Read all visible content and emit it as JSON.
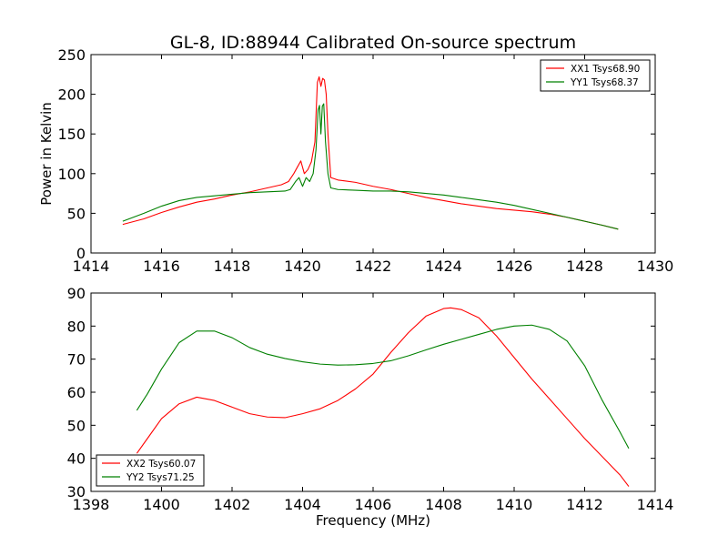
{
  "title": "GL-8, ID:88944 Calibrated On-source spectrum",
  "xlabel": "Frequency (MHz)",
  "chart_data": [
    {
      "type": "line",
      "ylabel": "Power in Kelvin",
      "xlim": [
        1414,
        1430
      ],
      "ylim": [
        0,
        250
      ],
      "xticks": [
        1414,
        1416,
        1418,
        1420,
        1422,
        1424,
        1426,
        1428,
        1430
      ],
      "yticks": [
        0,
        50,
        100,
        150,
        200,
        250
      ],
      "legend_position": "top-right",
      "series": [
        {
          "name": "XX1 Tsys68.90",
          "color": "#ff0000",
          "x": [
            1414.9,
            1415.5,
            1416,
            1416.5,
            1417,
            1417.5,
            1418,
            1418.5,
            1419,
            1419.4,
            1419.6,
            1419.75,
            1419.85,
            1419.95,
            1420.05,
            1420.15,
            1420.25,
            1420.35,
            1420.42,
            1420.47,
            1420.52,
            1420.57,
            1420.62,
            1420.67,
            1420.72,
            1420.8,
            1421,
            1421.5,
            1422,
            1422.5,
            1423,
            1423.5,
            1424,
            1424.5,
            1425,
            1425.5,
            1426,
            1426.5,
            1427,
            1427.5,
            1428,
            1428.5,
            1428.95
          ],
          "y": [
            36,
            43,
            51,
            58,
            64,
            68,
            73,
            77,
            82,
            86,
            90,
            100,
            108,
            116,
            100,
            105,
            115,
            140,
            215,
            222,
            210,
            220,
            218,
            200,
            150,
            95,
            92,
            89,
            84,
            80,
            75,
            70,
            66,
            62,
            59,
            56,
            54,
            52,
            49,
            45,
            40,
            35,
            30
          ]
        },
        {
          "name": "YY1 Tsys68.37",
          "color": "#008000",
          "x": [
            1414.9,
            1415.5,
            1416,
            1416.5,
            1417,
            1417.5,
            1418,
            1418.5,
            1419,
            1419.5,
            1419.65,
            1419.8,
            1419.9,
            1420,
            1420.1,
            1420.2,
            1420.3,
            1420.38,
            1420.44,
            1420.48,
            1420.52,
            1420.56,
            1420.6,
            1420.65,
            1420.72,
            1420.8,
            1421,
            1421.5,
            1422,
            1422.5,
            1423,
            1423.5,
            1424,
            1424.5,
            1425,
            1425.5,
            1426,
            1426.5,
            1427,
            1427.5,
            1428,
            1428.5,
            1428.95
          ],
          "y": [
            40,
            50,
            59,
            66,
            70,
            72,
            74,
            76,
            77,
            78,
            80,
            90,
            95,
            84,
            95,
            90,
            100,
            130,
            180,
            186,
            150,
            185,
            188,
            140,
            100,
            82,
            80,
            79,
            78,
            78,
            77,
            75,
            73,
            70,
            67,
            64,
            60,
            55,
            50,
            45,
            40,
            35,
            30
          ]
        }
      ]
    },
    {
      "type": "line",
      "ylabel": "",
      "xlim": [
        1398,
        1414
      ],
      "ylim": [
        30,
        90
      ],
      "xticks": [
        1398,
        1400,
        1402,
        1404,
        1406,
        1408,
        1410,
        1412,
        1414
      ],
      "yticks": [
        30,
        40,
        50,
        60,
        70,
        80,
        90
      ],
      "legend_position": "bottom-left",
      "series": [
        {
          "name": "XX2 Tsys60.07",
          "color": "#ff0000",
          "x": [
            1399.3,
            1399.6,
            1400,
            1400.5,
            1401,
            1401.5,
            1402,
            1402.5,
            1403,
            1403.5,
            1404,
            1404.5,
            1405,
            1405.5,
            1406,
            1406.5,
            1407,
            1407.5,
            1408,
            1408.2,
            1408.5,
            1409,
            1409.5,
            1410,
            1410.5,
            1411,
            1411.5,
            1412,
            1412.5,
            1413,
            1413.25
          ],
          "y": [
            41.5,
            46,
            52,
            56.5,
            58.5,
            57.5,
            55.5,
            53.5,
            52.5,
            52.3,
            53.5,
            55,
            57.5,
            61,
            65.5,
            72,
            78,
            83,
            85.3,
            85.5,
            85,
            82.5,
            77,
            70.5,
            64,
            58,
            52,
            46,
            40.5,
            35,
            31.5
          ]
        },
        {
          "name": "YY2 Tsys71.25",
          "color": "#008000",
          "x": [
            1399.3,
            1399.6,
            1400,
            1400.5,
            1401,
            1401.5,
            1402,
            1402.5,
            1403,
            1403.5,
            1404,
            1404.5,
            1405,
            1405.5,
            1406,
            1406.5,
            1407,
            1407.5,
            1408,
            1408.5,
            1409,
            1409.5,
            1410,
            1410.5,
            1411,
            1411.5,
            1412,
            1412.5,
            1413,
            1413.25
          ],
          "y": [
            54.5,
            59.5,
            67,
            75,
            78.5,
            78.5,
            76.5,
            73.5,
            71.5,
            70.2,
            69.2,
            68.5,
            68.2,
            68.3,
            68.7,
            69.5,
            71,
            72.8,
            74.5,
            76,
            77.5,
            79,
            80,
            80.3,
            79,
            75.5,
            68,
            57.5,
            48,
            43
          ]
        }
      ]
    }
  ]
}
